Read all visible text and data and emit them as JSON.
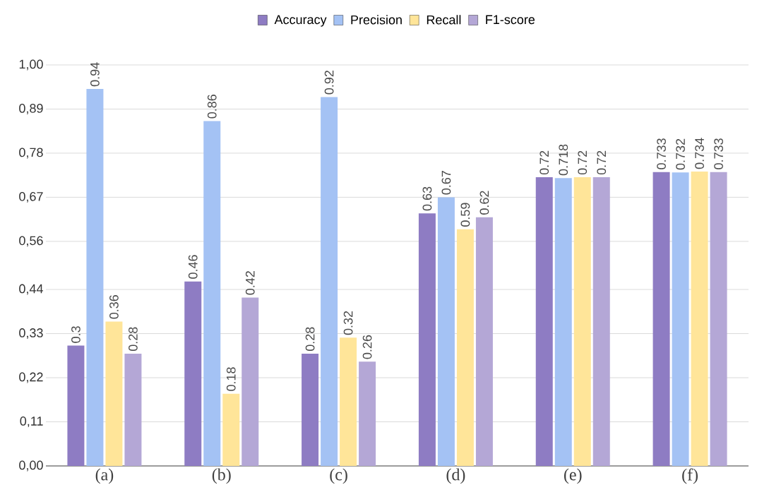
{
  "chart_data": {
    "type": "bar",
    "categories": [
      "(a)",
      "(b)",
      "(c)",
      "(d)",
      "(e)",
      "(f)"
    ],
    "series": [
      {
        "name": "Accuracy",
        "color": "#8e7cc3",
        "values": [
          0.3,
          0.46,
          0.28,
          0.63,
          0.72,
          0.733
        ]
      },
      {
        "name": "Precision",
        "color": "#a4c2f4",
        "values": [
          0.94,
          0.86,
          0.92,
          0.67,
          0.718,
          0.732
        ]
      },
      {
        "name": "Recall",
        "color": "#ffe599",
        "values": [
          0.36,
          0.18,
          0.32,
          0.59,
          0.72,
          0.734
        ]
      },
      {
        "name": "F1-score",
        "color": "#b4a7d6",
        "values": [
          0.28,
          0.42,
          0.26,
          0.62,
          0.72,
          0.733
        ]
      }
    ],
    "ylim": [
      0,
      1.0
    ],
    "yticks": [
      {
        "value": 0,
        "label": "0,00"
      },
      {
        "value": 0.11,
        "label": "0,11"
      },
      {
        "value": 0.22,
        "label": "0,22"
      },
      {
        "value": 0.33,
        "label": "0,33"
      },
      {
        "value": 0.44,
        "label": "0,44"
      },
      {
        "value": 0.56,
        "label": "0,56"
      },
      {
        "value": 0.67,
        "label": "0,67"
      },
      {
        "value": 0.78,
        "label": "0,78"
      },
      {
        "value": 0.89,
        "label": "0,89"
      },
      {
        "value": 1.0,
        "label": "1,00"
      }
    ],
    "grid": "y",
    "legend": "top",
    "data_labels": true
  }
}
